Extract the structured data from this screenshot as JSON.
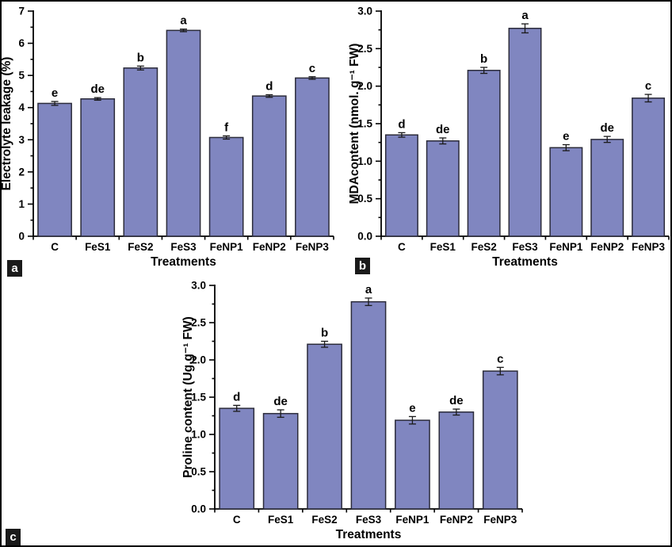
{
  "figure": {
    "background": "#ffffff",
    "border_color": "#000000",
    "bar_fill": "#8086c0",
    "bar_border": "#2b2b3a",
    "axis_color": "#000000",
    "error_bar_color": "#1a1a1a",
    "panel_box_bg": "#1a1a1a",
    "panel_box_text_color": "#ffffff"
  },
  "chart_data": [
    {
      "id": "a",
      "panel_label": "a",
      "type": "bar",
      "title": "",
      "xlabel": "Treatments",
      "ylabel": "Electrolyte leakage (%)",
      "ylim": [
        0,
        7
      ],
      "ytick_labels": [
        "0",
        "1",
        "2",
        "3",
        "4",
        "5",
        "6",
        "7"
      ],
      "minor_tick_step": 0.5,
      "grid": false,
      "legend": null,
      "categories": [
        "C",
        "FeS1",
        "FeS2",
        "FeS3",
        "FeNP1",
        "FeNP2",
        "FeNP3"
      ],
      "values": [
        4.13,
        4.27,
        5.23,
        6.4,
        3.07,
        4.36,
        4.92
      ],
      "errors": [
        0.06,
        0.04,
        0.06,
        0.04,
        0.05,
        0.04,
        0.04
      ],
      "sig_letters": [
        "e",
        "de",
        "b",
        "a",
        "f",
        "d",
        "c"
      ]
    },
    {
      "id": "b",
      "panel_label": "b",
      "type": "bar",
      "title": "",
      "xlabel": "Treatments",
      "ylabel": "MDAcontent (nmol. g⁻¹ FW)",
      "ylim": [
        0,
        3
      ],
      "ytick_labels": [
        "0.0",
        "0.5",
        "1.0",
        "1.5",
        "2.0",
        "2.5",
        "3.0"
      ],
      "minor_tick_step": 0.25,
      "grid": false,
      "legend": null,
      "categories": [
        "C",
        "FeS1",
        "FeS2",
        "FeS3",
        "FeNP1",
        "FeNP2",
        "FeNP3"
      ],
      "values": [
        1.35,
        1.27,
        2.21,
        2.77,
        1.18,
        1.29,
        1.84
      ],
      "errors": [
        0.03,
        0.04,
        0.04,
        0.06,
        0.04,
        0.04,
        0.05
      ],
      "sig_letters": [
        "d",
        "de",
        "b",
        "a",
        "e",
        "de",
        "c"
      ]
    },
    {
      "id": "c",
      "panel_label": "c",
      "type": "bar",
      "title": "",
      "xlabel": "Treatments",
      "ylabel": "Proline content (Ug.g⁻¹ FW)",
      "ylim": [
        0,
        3
      ],
      "ytick_labels": [
        "0.0",
        "0.5",
        "1.0",
        "1.5",
        "2.0",
        "2.5",
        "3.0"
      ],
      "minor_tick_step": 0.25,
      "grid": false,
      "legend": null,
      "categories": [
        "C",
        "FeS1",
        "FeS2",
        "FeS3",
        "FeNP1",
        "FeNP2",
        "FeNP3"
      ],
      "values": [
        1.35,
        1.28,
        2.21,
        2.78,
        1.19,
        1.3,
        1.85
      ],
      "errors": [
        0.04,
        0.05,
        0.04,
        0.05,
        0.05,
        0.04,
        0.05
      ],
      "sig_letters": [
        "d",
        "de",
        "b",
        "a",
        "e",
        "de",
        "c"
      ]
    }
  ]
}
